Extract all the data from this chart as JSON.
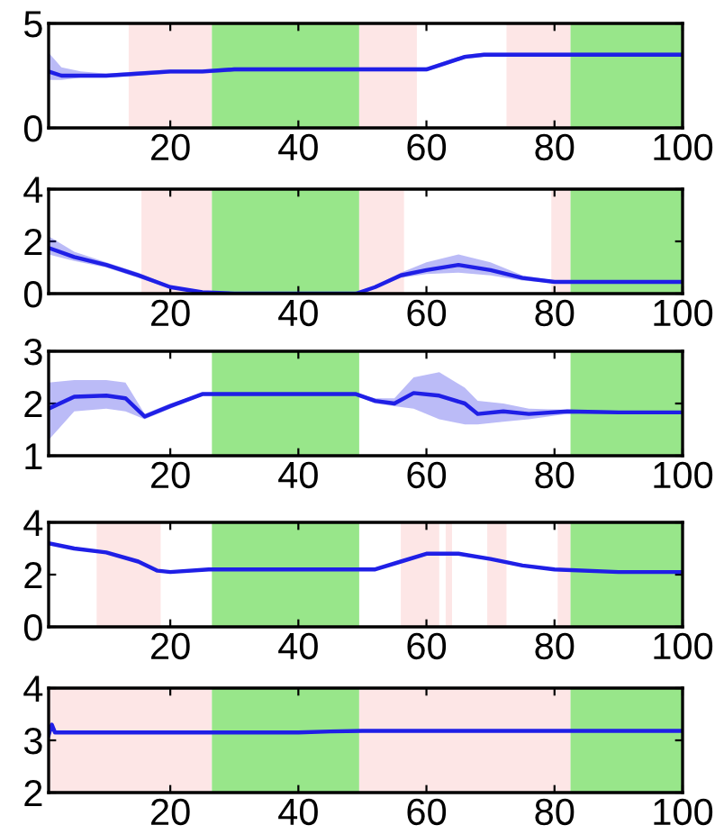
{
  "chart_data": [
    {
      "type": "line",
      "xlim": [
        1,
        100
      ],
      "xticks": [
        20,
        40,
        60,
        80,
        100
      ],
      "ylim": [
        0,
        5
      ],
      "yticks": [
        0,
        5
      ],
      "grid": false,
      "series": [
        {
          "color": "#1f1fe6",
          "x": [
            1,
            3,
            6,
            10,
            15,
            20,
            25,
            30,
            40,
            50,
            58,
            60,
            63,
            66,
            69,
            72,
            80,
            90,
            100
          ],
          "values": [
            2.7,
            2.5,
            2.5,
            2.5,
            2.6,
            2.7,
            2.7,
            2.8,
            2.8,
            2.8,
            2.8,
            2.8,
            3.1,
            3.4,
            3.5,
            3.5,
            3.5,
            3.5,
            3.5
          ],
          "lower": [
            2.3,
            2.3,
            2.4,
            2.4,
            2.5,
            2.6,
            2.6,
            2.7,
            2.7,
            2.7,
            2.7,
            2.7,
            3.0,
            3.3,
            3.4,
            3.4,
            3.4,
            3.4,
            3.4
          ],
          "upper": [
            3.6,
            2.9,
            2.7,
            2.6,
            2.7,
            2.8,
            2.8,
            2.9,
            2.9,
            2.9,
            2.9,
            2.9,
            3.2,
            3.5,
            3.6,
            3.6,
            3.6,
            3.6,
            3.6
          ]
        }
      ],
      "bands": [
        {
          "axis": "x",
          "from": 13.5,
          "to": 26.5,
          "color": "#fde6e6"
        },
        {
          "axis": "x",
          "from": 26.5,
          "to": 49.5,
          "color": "#98e68a"
        },
        {
          "axis": "x",
          "from": 49.5,
          "to": 58.5,
          "color": "#fde6e6"
        },
        {
          "axis": "x",
          "from": 72.5,
          "to": 82.5,
          "color": "#fde6e6"
        },
        {
          "axis": "x",
          "from": 82.5,
          "to": 100,
          "color": "#98e68a"
        }
      ]
    },
    {
      "type": "line",
      "xlim": [
        1,
        100
      ],
      "xticks": [
        20,
        40,
        60,
        80,
        100
      ],
      "ylim": [
        0,
        4
      ],
      "yticks": [
        0,
        2,
        4
      ],
      "grid": false,
      "series": [
        {
          "color": "#1f1fe6",
          "x": [
            1,
            5,
            10,
            15,
            20,
            25,
            30,
            40,
            49,
            52,
            56,
            60,
            65,
            70,
            75,
            80,
            90,
            100
          ],
          "values": [
            1.75,
            1.4,
            1.1,
            0.7,
            0.25,
            0.05,
            0,
            0,
            0,
            0.25,
            0.7,
            0.9,
            1.1,
            0.9,
            0.6,
            0.45,
            0.45,
            0.45
          ],
          "lower": [
            1.5,
            1.25,
            1.0,
            0.6,
            0.2,
            0.02,
            0,
            0,
            0,
            0.2,
            0.6,
            0.75,
            0.8,
            0.7,
            0.5,
            0.4,
            0.4,
            0.4
          ],
          "upper": [
            2.2,
            1.6,
            1.2,
            0.8,
            0.3,
            0.08,
            0,
            0,
            0,
            0.3,
            0.8,
            1.2,
            1.5,
            1.2,
            0.7,
            0.5,
            0.5,
            0.5
          ]
        }
      ],
      "bands": [
        {
          "axis": "x",
          "from": 15.5,
          "to": 26.5,
          "color": "#fde6e6"
        },
        {
          "axis": "x",
          "from": 26.5,
          "to": 49.5,
          "color": "#98e68a"
        },
        {
          "axis": "x",
          "from": 49.5,
          "to": 56.5,
          "color": "#fde6e6"
        },
        {
          "axis": "x",
          "from": 79.5,
          "to": 82.5,
          "color": "#fde6e6"
        },
        {
          "axis": "x",
          "from": 82.5,
          "to": 100,
          "color": "#98e68a"
        }
      ]
    },
    {
      "type": "line",
      "xlim": [
        1,
        100
      ],
      "xticks": [
        20,
        40,
        60,
        80,
        100
      ],
      "ylim": [
        1,
        3
      ],
      "yticks": [
        1,
        2,
        3
      ],
      "grid": false,
      "series": [
        {
          "color": "#1f1fe6",
          "x": [
            1,
            5,
            10,
            13,
            16,
            20,
            25,
            30,
            40,
            49,
            52,
            55,
            58,
            62,
            66,
            68,
            72,
            76,
            82,
            90,
            100
          ],
          "values": [
            1.9,
            2.13,
            2.15,
            2.1,
            1.75,
            1.95,
            2.18,
            2.18,
            2.18,
            2.18,
            2.05,
            2.0,
            2.2,
            2.15,
            2.0,
            1.8,
            1.85,
            1.8,
            1.85,
            1.83,
            1.83
          ],
          "lower": [
            1.3,
            1.85,
            1.9,
            1.85,
            1.7,
            1.9,
            2.15,
            2.15,
            2.15,
            2.15,
            2.0,
            1.95,
            1.9,
            1.7,
            1.6,
            1.6,
            1.65,
            1.7,
            1.8,
            1.8,
            1.8
          ],
          "upper": [
            2.4,
            2.45,
            2.45,
            2.4,
            1.8,
            2.0,
            2.2,
            2.2,
            2.2,
            2.2,
            2.1,
            2.1,
            2.5,
            2.6,
            2.3,
            2.05,
            2.0,
            1.9,
            1.88,
            1.86,
            1.86
          ]
        }
      ],
      "bands": [
        {
          "axis": "x",
          "from": 26.5,
          "to": 49.5,
          "color": "#98e68a"
        },
        {
          "axis": "x",
          "from": 82.5,
          "to": 100,
          "color": "#98e68a"
        }
      ]
    },
    {
      "type": "line",
      "xlim": [
        1,
        100
      ],
      "xticks": [
        20,
        40,
        60,
        80,
        100
      ],
      "ylim": [
        0,
        4
      ],
      "yticks": [
        0,
        2,
        4
      ],
      "grid": false,
      "series": [
        {
          "color": "#1f1fe6",
          "x": [
            1,
            5,
            10,
            15,
            18,
            20,
            26,
            40,
            52,
            56,
            60,
            65,
            70,
            75,
            80,
            90,
            100
          ],
          "values": [
            3.2,
            3.0,
            2.85,
            2.5,
            2.15,
            2.1,
            2.2,
            2.2,
            2.2,
            2.5,
            2.8,
            2.8,
            2.6,
            2.35,
            2.2,
            2.1,
            2.1
          ]
        }
      ],
      "bands": [
        {
          "axis": "x",
          "from": 8.5,
          "to": 18.5,
          "color": "#fde6e6"
        },
        {
          "axis": "x",
          "from": 26.5,
          "to": 49.5,
          "color": "#98e68a"
        },
        {
          "axis": "x",
          "from": 56,
          "to": 62,
          "color": "#fde6e6"
        },
        {
          "axis": "x",
          "from": 63,
          "to": 64,
          "color": "#fde6e6"
        },
        {
          "axis": "x",
          "from": 69.5,
          "to": 72.5,
          "color": "#fde6e6"
        },
        {
          "axis": "x",
          "from": 80.5,
          "to": 82.5,
          "color": "#fde6e6"
        },
        {
          "axis": "x",
          "from": 82.5,
          "to": 100,
          "color": "#98e68a"
        }
      ]
    },
    {
      "type": "line",
      "xlim": [
        1,
        100
      ],
      "xticks": [
        20,
        40,
        60,
        80,
        100
      ],
      "ylim": [
        2,
        4
      ],
      "yticks": [
        2,
        3,
        4
      ],
      "grid": false,
      "series": [
        {
          "color": "#1f1fe6",
          "x": [
            1,
            1.5,
            2,
            10,
            26,
            40,
            45,
            50,
            60,
            80,
            100
          ],
          "values": [
            3.1,
            3.3,
            3.15,
            3.15,
            3.15,
            3.15,
            3.17,
            3.18,
            3.18,
            3.18,
            3.18
          ]
        }
      ],
      "bands": [
        {
          "axis": "x",
          "from": 1,
          "to": 26.5,
          "color": "#fde6e6"
        },
        {
          "axis": "x",
          "from": 26.5,
          "to": 49.5,
          "color": "#98e68a"
        },
        {
          "axis": "x",
          "from": 49.5,
          "to": 82.5,
          "color": "#fde6e6"
        },
        {
          "axis": "x",
          "from": 82.5,
          "to": 100,
          "color": "#98e68a"
        }
      ]
    }
  ]
}
